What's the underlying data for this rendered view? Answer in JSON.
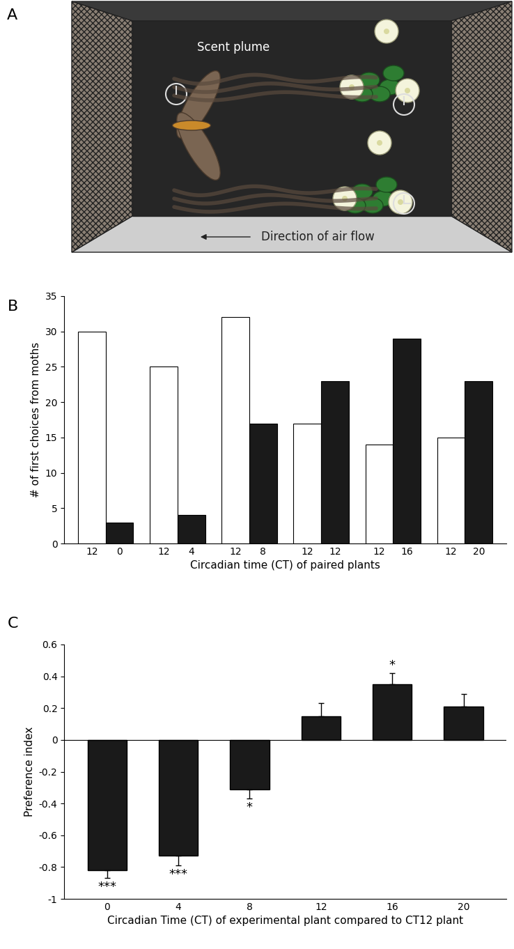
{
  "diagram": {
    "panel": "A",
    "labels": {
      "plume": "Scent plume",
      "air_flow": "Direction of air flow"
    }
  },
  "chart_data": [
    {
      "panel": "B",
      "type": "bar",
      "categories": [
        "12",
        "0",
        "12",
        "4",
        "12",
        "8",
        "12",
        "12",
        "12",
        "16",
        "12",
        "20"
      ],
      "values": [
        30,
        3,
        25,
        4,
        32,
        17,
        17,
        23,
        14,
        29,
        15,
        23
      ],
      "colors": [
        "#ffffff",
        "#1a1a1a",
        "#ffffff",
        "#1a1a1a",
        "#ffffff",
        "#1a1a1a",
        "#ffffff",
        "#1a1a1a",
        "#ffffff",
        "#1a1a1a",
        "#ffffff",
        "#1a1a1a"
      ],
      "ylim": [
        0,
        35
      ],
      "yticks": [
        0,
        5,
        10,
        15,
        20,
        25,
        30,
        35
      ],
      "y_label": "# of first choices from moths",
      "x_label": "Circadian time (CT) of paired plants"
    },
    {
      "panel": "C",
      "type": "bar",
      "categories": [
        "0",
        "4",
        "8",
        "12",
        "16",
        "20"
      ],
      "values": [
        -0.82,
        -0.73,
        -0.31,
        0.15,
        0.35,
        0.21
      ],
      "errors": [
        0.05,
        0.06,
        0.06,
        0.08,
        0.07,
        0.08
      ],
      "significance": [
        "***",
        "***",
        "*",
        null,
        "*",
        null
      ],
      "color": "#1a1a1a",
      "ylim": [
        -1,
        0.6
      ],
      "yticks": [
        -1,
        -0.8,
        -0.6,
        -0.4,
        -0.2,
        0,
        0.2,
        0.4,
        0.6
      ],
      "y_label": "Preference index",
      "x_label": "Circadian Time (CT) of experimental plant compared to CT12 plant"
    }
  ]
}
